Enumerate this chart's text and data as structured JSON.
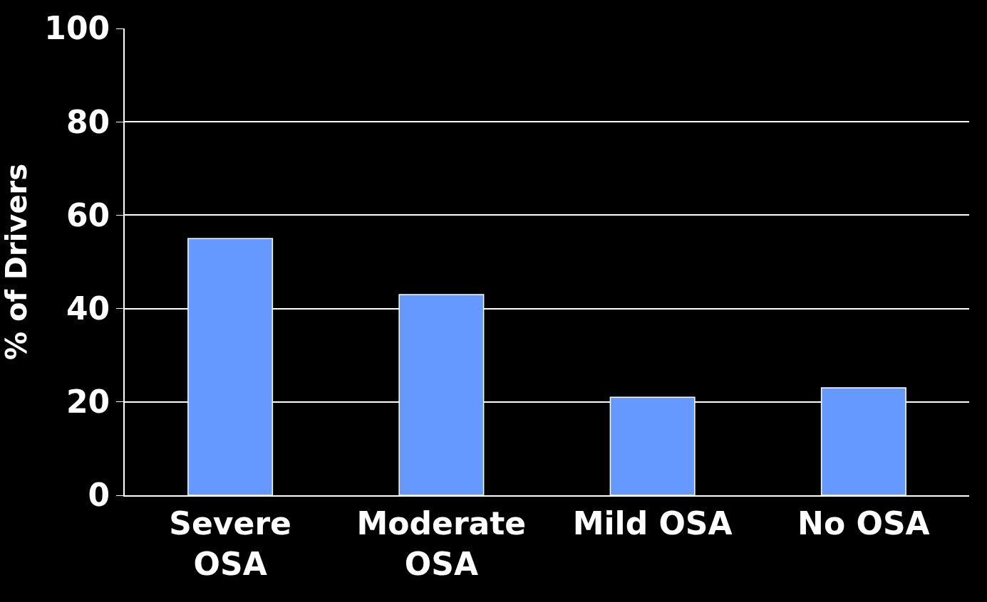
{
  "chart_data": {
    "type": "bar",
    "ylabel": "% of Drivers",
    "categories": [
      "Severe OSA",
      "Moderate OSA",
      "Mild OSA",
      "No OSA"
    ],
    "values": [
      55,
      43,
      21,
      23
    ],
    "color": "#6699ff",
    "ylim": [
      0,
      100
    ],
    "yticks": [
      0,
      20,
      40,
      60,
      80,
      100
    ],
    "grid": "y"
  }
}
